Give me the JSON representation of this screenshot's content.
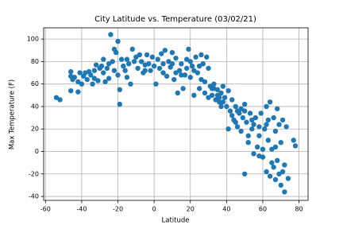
{
  "chart_data": {
    "type": "scatter",
    "title": "City Latitude vs. Temperature (03/02/21)",
    "x_label": "Latitude",
    "y_label": "Max Temperature (F)",
    "color": "#1f77b4",
    "grid": true,
    "xlim": [
      -61,
      85
    ],
    "ylim": [
      -43.5,
      110
    ],
    "xticks": [
      -60,
      -40,
      -20,
      0,
      20,
      40,
      60,
      80
    ],
    "yticks": [
      -40,
      -20,
      0,
      20,
      40,
      60,
      80,
      100
    ],
    "x": [
      -54,
      -52,
      -46,
      -46,
      -46,
      -45,
      -42,
      -42,
      -41,
      -40,
      -39,
      -37,
      -36,
      -35,
      -34,
      -33,
      -33,
      -32,
      -31,
      -30,
      -29,
      -28,
      -28,
      -27,
      -26,
      -25,
      -24,
      -23,
      -22,
      -22,
      -21,
      -20,
      -20,
      -19,
      -19,
      -18,
      -17,
      -16,
      -15,
      -14,
      -13,
      -12,
      -11,
      -10,
      -9,
      -8,
      -7,
      -6,
      -5,
      -4,
      -3,
      -2,
      -1,
      0,
      1,
      2,
      3,
      4,
      5,
      6,
      7,
      8,
      9,
      10,
      11,
      12,
      13,
      14,
      15,
      16,
      17,
      18,
      19,
      20,
      21,
      22,
      23,
      24,
      25,
      26,
      27,
      28,
      29,
      30,
      31,
      32,
      33,
      34,
      35,
      36,
      37,
      38,
      39,
      40,
      41,
      42,
      43,
      44,
      45,
      46,
      47,
      48,
      49,
      50,
      50,
      51,
      52,
      53,
      54,
      55,
      56,
      57,
      58,
      59,
      60,
      60,
      61,
      62,
      62,
      63,
      64,
      64,
      65,
      66,
      66,
      67,
      67,
      68,
      68,
      69,
      70,
      70,
      71,
      71,
      72,
      72,
      73,
      74,
      77,
      78,
      41,
      45,
      48,
      52,
      55,
      58,
      63,
      65,
      43,
      38,
      35,
      30,
      28,
      33,
      37,
      -38,
      -44,
      5,
      10,
      15,
      20,
      25,
      -5,
      -15,
      -25,
      12,
      18,
      22,
      26,
      32,
      36,
      46,
      54,
      62,
      67,
      69,
      58,
      50
    ],
    "y": [
      48,
      46,
      67,
      71,
      54,
      64,
      62,
      53,
      70,
      60,
      67,
      64,
      71,
      68,
      60,
      72,
      65,
      77,
      63,
      74,
      76,
      70,
      82,
      62,
      74,
      65,
      104,
      80,
      91,
      72,
      88,
      98,
      68,
      42,
      55,
      82,
      76,
      72,
      66,
      78,
      60,
      91,
      80,
      84,
      74,
      86,
      80,
      70,
      77,
      86,
      78,
      72,
      84,
      76,
      60,
      82,
      74,
      87,
      78,
      90,
      67,
      80,
      75,
      88,
      64,
      83,
      52,
      72,
      78,
      56,
      68,
      82,
      91,
      66,
      76,
      50,
      84,
      70,
      56,
      86,
      78,
      62,
      84,
      74,
      58,
      50,
      60,
      46,
      55,
      44,
      52,
      58,
      48,
      40,
      54,
      36,
      46,
      28,
      40,
      22,
      34,
      18,
      30,
      42,
      -20,
      26,
      8,
      34,
      20,
      -2,
      30,
      4,
      14,
      34,
      2,
      -5,
      20,
      -18,
      40,
      10,
      -22,
      44,
      2,
      -14,
      30,
      -25,
      18,
      -8,
      38,
      24,
      -30,
      8,
      -18,
      28,
      -36,
      -12,
      22,
      -24,
      10,
      5,
      20,
      26,
      38,
      14,
      24,
      -4,
      28,
      -10,
      32,
      44,
      50,
      48,
      52,
      56,
      40,
      70,
      66,
      70,
      78,
      68,
      80,
      76,
      72,
      82,
      78,
      70,
      74,
      72,
      64,
      56,
      48,
      36,
      28,
      24,
      4,
      -20,
      22,
      36
    ]
  }
}
